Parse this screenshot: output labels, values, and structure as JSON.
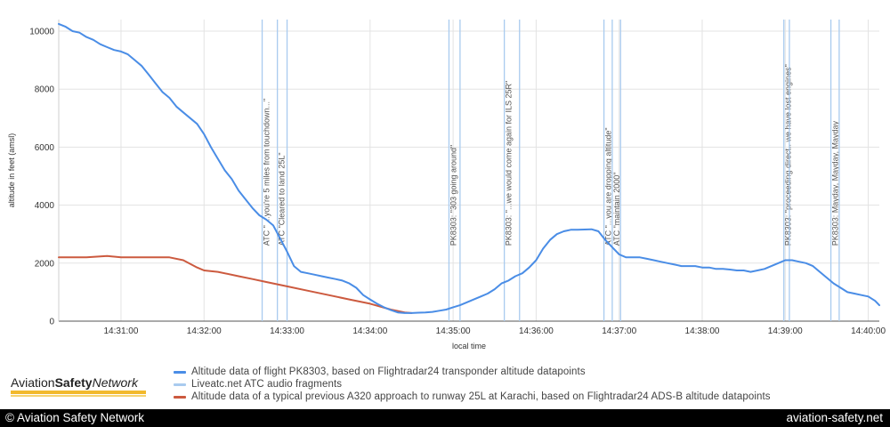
{
  "chart_data": {
    "type": "line",
    "xlabel": "local time",
    "ylabel": "altitude in feet (amsl)",
    "x_unit": "time of day",
    "xlim": [
      "14:30:15",
      "14:40:08"
    ],
    "ylim": [
      0,
      10400
    ],
    "x_ticks": [
      "14:31:00",
      "14:32:00",
      "14:33:00",
      "14:34:00",
      "14:35:00",
      "14:36:00",
      "14:37:00",
      "14:38:00",
      "14:39:00",
      "14:40:00"
    ],
    "y_ticks": [
      0,
      2000,
      4000,
      6000,
      8000,
      10000
    ],
    "grid": true,
    "series": [
      {
        "name": "Altitude data of flight PK8303, based on Flightradar24 transponder altitude datapoints",
        "color": "#4a8de6",
        "points": [
          [
            "14:30:15",
            10250
          ],
          [
            "14:30:20",
            10150
          ],
          [
            "14:30:25",
            10000
          ],
          [
            "14:30:30",
            9950
          ],
          [
            "14:30:35",
            9800
          ],
          [
            "14:30:40",
            9700
          ],
          [
            "14:30:45",
            9550
          ],
          [
            "14:30:50",
            9450
          ],
          [
            "14:30:55",
            9350
          ],
          [
            "14:31:00",
            9300
          ],
          [
            "14:31:05",
            9200
          ],
          [
            "14:31:10",
            9000
          ],
          [
            "14:31:15",
            8800
          ],
          [
            "14:31:20",
            8500
          ],
          [
            "14:31:25",
            8200
          ],
          [
            "14:31:30",
            7900
          ],
          [
            "14:31:35",
            7700
          ],
          [
            "14:31:40",
            7400
          ],
          [
            "14:31:45",
            7200
          ],
          [
            "14:31:50",
            7000
          ],
          [
            "14:31:55",
            6800
          ],
          [
            "14:32:00",
            6450
          ],
          [
            "14:32:05",
            6000
          ],
          [
            "14:32:10",
            5600
          ],
          [
            "14:32:15",
            5200
          ],
          [
            "14:32:20",
            4900
          ],
          [
            "14:32:25",
            4500
          ],
          [
            "14:32:30",
            4200
          ],
          [
            "14:32:35",
            3900
          ],
          [
            "14:32:40",
            3650
          ],
          [
            "14:32:45",
            3500
          ],
          [
            "14:32:50",
            3300
          ],
          [
            "14:32:55",
            2850
          ],
          [
            "14:33:00",
            2400
          ],
          [
            "14:33:05",
            1900
          ],
          [
            "14:33:10",
            1700
          ],
          [
            "14:33:15",
            1650
          ],
          [
            "14:33:20",
            1600
          ],
          [
            "14:33:25",
            1550
          ],
          [
            "14:33:30",
            1500
          ],
          [
            "14:33:35",
            1450
          ],
          [
            "14:33:40",
            1400
          ],
          [
            "14:33:45",
            1300
          ],
          [
            "14:33:50",
            1150
          ],
          [
            "14:33:55",
            900
          ],
          [
            "14:34:00",
            750
          ],
          [
            "14:34:05",
            600
          ],
          [
            "14:34:10",
            480
          ],
          [
            "14:34:15",
            380
          ],
          [
            "14:34:20",
            300
          ],
          [
            "14:34:25",
            280
          ],
          [
            "14:34:30",
            280
          ],
          [
            "14:34:35",
            290
          ],
          [
            "14:34:40",
            300
          ],
          [
            "14:34:45",
            320
          ],
          [
            "14:34:50",
            360
          ],
          [
            "14:34:55",
            400
          ],
          [
            "14:35:00",
            480
          ],
          [
            "14:35:05",
            550
          ],
          [
            "14:35:10",
            650
          ],
          [
            "14:35:15",
            750
          ],
          [
            "14:35:20",
            850
          ],
          [
            "14:35:25",
            950
          ],
          [
            "14:35:30",
            1100
          ],
          [
            "14:35:35",
            1300
          ],
          [
            "14:35:40",
            1400
          ],
          [
            "14:35:45",
            1550
          ],
          [
            "14:35:50",
            1650
          ],
          [
            "14:35:55",
            1850
          ],
          [
            "14:36:00",
            2100
          ],
          [
            "14:36:05",
            2500
          ],
          [
            "14:36:10",
            2800
          ],
          [
            "14:36:15",
            3000
          ],
          [
            "14:36:20",
            3100
          ],
          [
            "14:36:25",
            3150
          ],
          [
            "14:36:30",
            3150
          ],
          [
            "14:36:35",
            3160
          ],
          [
            "14:36:40",
            3170
          ],
          [
            "14:36:45",
            3100
          ],
          [
            "14:36:50",
            2800
          ],
          [
            "14:36:55",
            2550
          ],
          [
            "14:37:00",
            2300
          ],
          [
            "14:37:05",
            2200
          ],
          [
            "14:37:10",
            2200
          ],
          [
            "14:37:15",
            2200
          ],
          [
            "14:37:20",
            2150
          ],
          [
            "14:37:25",
            2100
          ],
          [
            "14:37:30",
            2050
          ],
          [
            "14:37:35",
            2000
          ],
          [
            "14:37:40",
            1950
          ],
          [
            "14:37:45",
            1900
          ],
          [
            "14:37:50",
            1900
          ],
          [
            "14:37:55",
            1900
          ],
          [
            "14:38:00",
            1850
          ],
          [
            "14:38:05",
            1850
          ],
          [
            "14:38:10",
            1800
          ],
          [
            "14:38:15",
            1800
          ],
          [
            "14:38:20",
            1780
          ],
          [
            "14:38:25",
            1750
          ],
          [
            "14:38:30",
            1750
          ],
          [
            "14:38:35",
            1700
          ],
          [
            "14:38:40",
            1750
          ],
          [
            "14:38:45",
            1800
          ],
          [
            "14:38:50",
            1900
          ],
          [
            "14:38:55",
            2000
          ],
          [
            "14:39:00",
            2100
          ],
          [
            "14:39:05",
            2100
          ],
          [
            "14:39:10",
            2050
          ],
          [
            "14:39:15",
            2000
          ],
          [
            "14:39:20",
            1900
          ],
          [
            "14:39:25",
            1700
          ],
          [
            "14:39:30",
            1500
          ],
          [
            "14:39:35",
            1300
          ],
          [
            "14:39:40",
            1150
          ],
          [
            "14:39:45",
            1000
          ],
          [
            "14:39:50",
            950
          ],
          [
            "14:39:55",
            900
          ],
          [
            "14:40:00",
            850
          ],
          [
            "14:40:05",
            700
          ],
          [
            "14:40:08",
            550
          ]
        ]
      },
      {
        "name": "Liveatc.net ATC audio fragments",
        "color": "#a9cbef",
        "type": "vertical-markers",
        "markers": [
          {
            "time": "14:32:42",
            "label": "ATC \" ...you're 5 miles from touchdown...\""
          },
          {
            "time": "14:32:53",
            "label": "ATC \"Cleared to land 25L\""
          },
          {
            "time": "14:33:00",
            "label": ""
          },
          {
            "time": "14:34:57",
            "label": "PK8303: \"303 going around\""
          },
          {
            "time": "14:35:05",
            "label": ""
          },
          {
            "time": "14:35:37",
            "label": "PK8303: \"...we would come again for ILS 25R\""
          },
          {
            "time": "14:35:48",
            "label": ""
          },
          {
            "time": "14:36:49",
            "label": "ATC \"...you are dropping altitude\""
          },
          {
            "time": "14:36:55",
            "label": "ATC \"maintain 2000\""
          },
          {
            "time": "14:37:01",
            "label": ""
          },
          {
            "time": "14:38:59",
            "label": "PK8303: \"proceeding direct.. we have lost engines\""
          },
          {
            "time": "14:39:03",
            "label": ""
          },
          {
            "time": "14:39:33",
            "label": "PK8303: Mayday, Mayday, Mayday"
          },
          {
            "time": "14:39:39",
            "label": ""
          }
        ]
      },
      {
        "name": "Altitude data of a typical previous A320 approach to runway 25L at Karachi, based on Flightradar24 ADS-B altitude datapoints",
        "color": "#cc5a3f",
        "points": [
          [
            "14:30:15",
            2200
          ],
          [
            "14:30:35",
            2200
          ],
          [
            "14:30:50",
            2250
          ],
          [
            "14:31:00",
            2200
          ],
          [
            "14:31:35",
            2200
          ],
          [
            "14:31:45",
            2100
          ],
          [
            "14:31:55",
            1850
          ],
          [
            "14:32:00",
            1750
          ],
          [
            "14:32:10",
            1700
          ],
          [
            "14:32:25",
            1550
          ],
          [
            "14:32:35",
            1450
          ],
          [
            "14:32:45",
            1350
          ],
          [
            "14:33:00",
            1200
          ],
          [
            "14:33:15",
            1050
          ],
          [
            "14:33:30",
            900
          ],
          [
            "14:33:45",
            750
          ],
          [
            "14:34:00",
            600
          ],
          [
            "14:34:15",
            400
          ],
          [
            "14:34:25",
            300
          ],
          [
            "14:34:30",
            280
          ]
        ]
      }
    ]
  },
  "legend": {
    "items": [
      {
        "label": "Altitude data of flight PK8303, based on Flightradar24 transponder altitude datapoints",
        "color": "#4a8de6"
      },
      {
        "label": "Liveatc.net ATC audio fragments",
        "color": "#a9cbef"
      },
      {
        "label": "Altitude data of a typical previous A320 approach to runway 25L at Karachi, based on Flightradar24 ADS-B altitude datapoints",
        "color": "#cc5a3f"
      }
    ]
  },
  "logo": {
    "part1": "Aviation",
    "part2": "Safety",
    "part3": "Network"
  },
  "footer": {
    "left": "© Aviation Safety Network",
    "right": "aviation-safety.net"
  }
}
